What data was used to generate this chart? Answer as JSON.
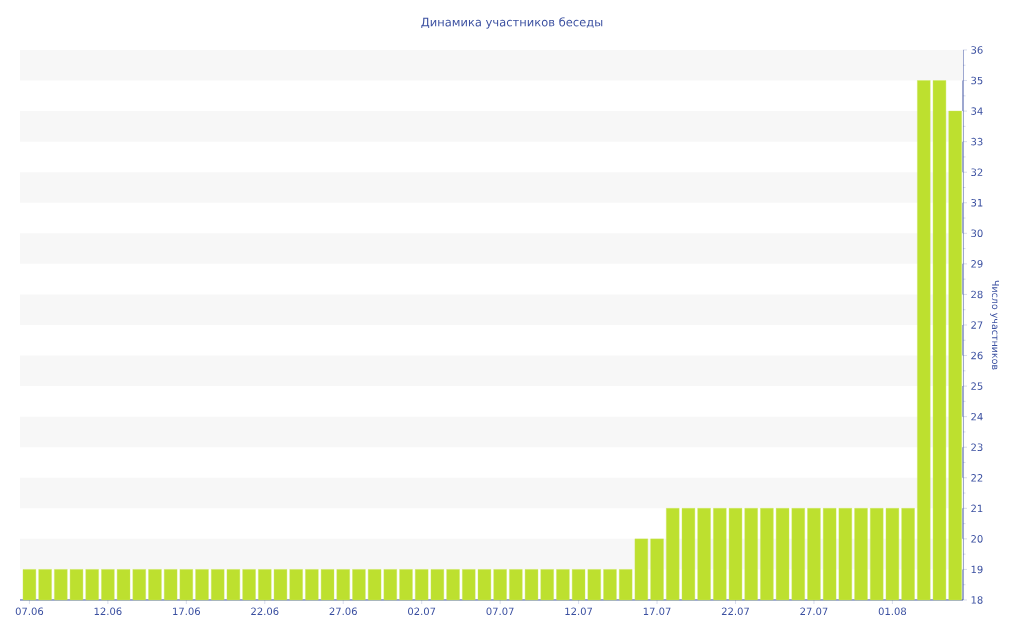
{
  "chart_data": {
    "type": "bar",
    "title": "Динамика участников беседы",
    "ylabel": "Число участников",
    "categories": [
      "07.06",
      null,
      null,
      null,
      null,
      "12.06",
      null,
      null,
      null,
      null,
      "17.06",
      null,
      null,
      null,
      null,
      "22.06",
      null,
      null,
      null,
      null,
      "27.06",
      null,
      null,
      null,
      null,
      "02.07",
      null,
      null,
      null,
      null,
      "07.07",
      null,
      null,
      null,
      null,
      "12.07",
      null,
      null,
      null,
      null,
      "17.07",
      null,
      null,
      null,
      null,
      "22.07",
      null,
      null,
      null,
      null,
      "27.07",
      null,
      null,
      null,
      null,
      "01.08",
      null,
      null,
      null,
      null
    ],
    "values": [
      19,
      19,
      19,
      19,
      19,
      19,
      19,
      19,
      19,
      19,
      19,
      19,
      19,
      19,
      19,
      19,
      19,
      19,
      19,
      19,
      19,
      19,
      19,
      19,
      19,
      19,
      19,
      19,
      19,
      19,
      19,
      19,
      19,
      19,
      19,
      19,
      19,
      19,
      19,
      20,
      20,
      21,
      21,
      21,
      21,
      21,
      21,
      21,
      21,
      21,
      21,
      21,
      21,
      21,
      21,
      21,
      21,
      35,
      35,
      34
    ],
    "color": "#bde02f",
    "ylim": [
      18,
      36
    ],
    "yticks": [
      18,
      19,
      20,
      21,
      22,
      23,
      24,
      25,
      26,
      27,
      28,
      29,
      30,
      31,
      32,
      33,
      34,
      35,
      36
    ]
  }
}
